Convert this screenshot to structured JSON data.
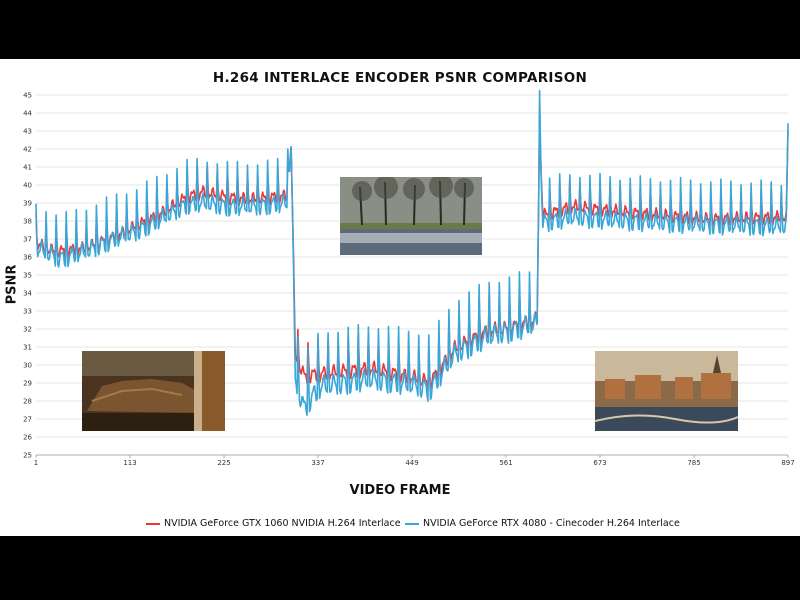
{
  "chart_data": {
    "type": "line",
    "title": "H.264 INTERLACE ENCODER PSNR COMPARISON",
    "xlabel": "VIDEO FRAME",
    "ylabel": "PSNR",
    "xlim": [
      1,
      897
    ],
    "ylim": [
      25,
      45
    ],
    "x_ticks": [
      1,
      113,
      225,
      337,
      449,
      561,
      673,
      785,
      897
    ],
    "y_ticks": [
      25,
      26,
      27,
      28,
      29,
      30,
      31,
      32,
      33,
      34,
      35,
      36,
      37,
      38,
      39,
      40,
      41,
      42,
      43,
      44,
      45
    ],
    "grid": true,
    "legend_position": "bottom",
    "series": [
      {
        "name": "NVIDIA GeForce GTX 1060 NVIDIA H.264 Interlace",
        "color": "#e8393d",
        "base_points": [
          [
            1,
            36.8
          ],
          [
            15,
            36.4
          ],
          [
            30,
            36.3
          ],
          [
            60,
            36.5
          ],
          [
            90,
            37.0
          ],
          [
            120,
            37.7
          ],
          [
            150,
            38.4
          ],
          [
            180,
            39.3
          ],
          [
            200,
            39.6
          ],
          [
            230,
            39.3
          ],
          [
            260,
            39.2
          ],
          [
            300,
            39.4
          ],
          [
            305,
            42.2
          ],
          [
            310,
            30.6
          ],
          [
            320,
            29.4
          ],
          [
            340,
            29.5
          ],
          [
            400,
            29.8
          ],
          [
            450,
            29.3
          ],
          [
            470,
            29.0
          ],
          [
            500,
            30.9
          ],
          [
            540,
            31.9
          ],
          [
            560,
            32.0
          ],
          [
            598,
            32.5
          ],
          [
            601,
            42.8
          ],
          [
            605,
            38.3
          ],
          [
            640,
            38.8
          ],
          [
            700,
            38.5
          ],
          [
            800,
            38.1
          ],
          [
            895,
            38.2
          ],
          [
            897,
            43.0
          ]
        ],
        "spike_amplitude": 1.0
      },
      {
        "name": "NVIDIA GeForce RTX 4080 - Cinecoder H.264 Interlace",
        "color": "#3aa6d8",
        "base_points": [
          [
            1,
            36.5
          ],
          [
            15,
            36.2
          ],
          [
            30,
            35.9
          ],
          [
            60,
            36.3
          ],
          [
            90,
            36.9
          ],
          [
            120,
            37.4
          ],
          [
            150,
            38.1
          ],
          [
            180,
            38.9
          ],
          [
            200,
            39.0
          ],
          [
            230,
            38.8
          ],
          [
            260,
            38.8
          ],
          [
            300,
            39.0
          ],
          [
            305,
            42.4
          ],
          [
            310,
            29.2
          ],
          [
            320,
            27.6
          ],
          [
            340,
            28.8
          ],
          [
            400,
            29.2
          ],
          [
            450,
            28.9
          ],
          [
            470,
            28.6
          ],
          [
            500,
            30.6
          ],
          [
            540,
            31.6
          ],
          [
            560,
            31.8
          ],
          [
            598,
            32.3
          ],
          [
            601,
            43.0
          ],
          [
            605,
            37.9
          ],
          [
            640,
            38.2
          ],
          [
            700,
            38.0
          ],
          [
            800,
            37.8
          ],
          [
            895,
            37.7
          ],
          [
            897,
            43.3
          ]
        ],
        "spike_amplitude": 1.6
      }
    ]
  }
}
